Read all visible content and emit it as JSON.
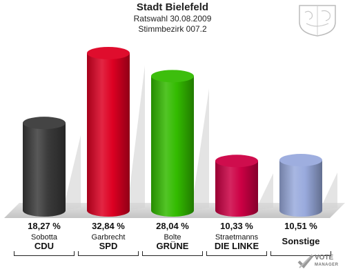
{
  "header": {
    "title": "Stadt Bielefeld",
    "subtitle": "Ratswahl 30.08.2009",
    "district": "Stimmbezirk 007.2"
  },
  "chart_data": {
    "type": "bar",
    "categories": [
      "CDU",
      "SPD",
      "GRÜNE",
      "DIE LINKE",
      "Sonstige"
    ],
    "candidates": [
      "Sobotta",
      "Garbrecht",
      "Bolte",
      "Straetmanns",
      ""
    ],
    "values": [
      18.27,
      32.84,
      28.04,
      10.33,
      10.51
    ],
    "labels": [
      "18,27 %",
      "32,84 %",
      "28,04 %",
      "10,33 %",
      "10,51 %"
    ],
    "colors": [
      "#3a3a3a",
      "#dd0022",
      "#33bb00",
      "#cc0044",
      "#99aadd"
    ],
    "ylim": [
      0,
      35
    ]
  },
  "logo": {
    "line1": "VOTE",
    "line2": "MANAGER"
  }
}
